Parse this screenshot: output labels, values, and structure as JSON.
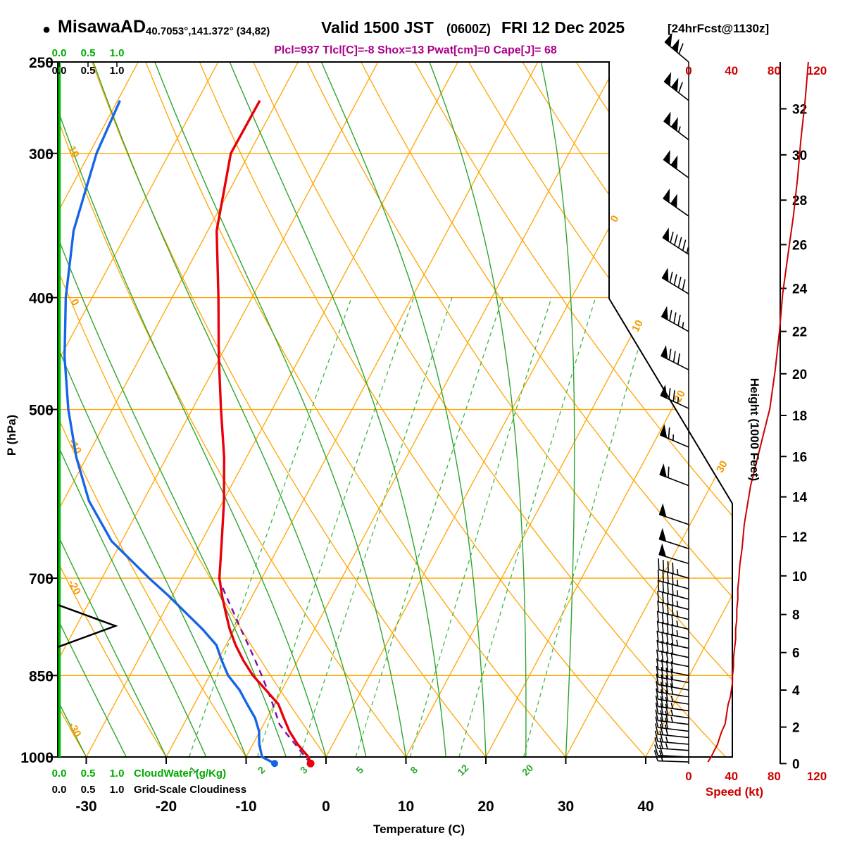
{
  "header": {
    "station_marker": "●",
    "station": "MisawaAD",
    "coords": "40.7053°,141.372° (34,82)",
    "valid_main": "Valid 1500 JST",
    "valid_zulu": "(0600Z)",
    "valid_date": "FRI 12 Dec 2025",
    "fcst_tag": "[24hrFcst@1130z]",
    "indices": "Plcl=937 Tlcl[C]=-8 Shox=13 Pwat[cm]=0 Cape[J]= 68"
  },
  "colors": {
    "grid_orange": "#FFA500",
    "label_orange": "#F59B00",
    "moist_green": "#2FA52F",
    "mixing_green": "#3DB83D",
    "cloudwater_green": "#00BB00",
    "scale_green": "#00AA00",
    "temp_red": "#E8000A",
    "dewpoint_blue": "#1565E6",
    "parcel_purple": "#7A0DA8",
    "speed_red": "#CC0000",
    "indices_magenta": "#AA0088"
  },
  "axes": {
    "pressure": {
      "title": "P (hPa)",
      "ticks": [
        250,
        300,
        400,
        500,
        700,
        850,
        1000
      ]
    },
    "temperature": {
      "title": "Temperature (C)",
      "ticks": [
        -30,
        -20,
        -10,
        0,
        10,
        20,
        30,
        40
      ]
    },
    "height": {
      "title": "Height (1000 Feet)",
      "ticks": [
        0,
        2,
        4,
        6,
        8,
        10,
        12,
        14,
        16,
        18,
        20,
        22,
        24,
        26,
        28,
        30,
        32
      ]
    },
    "speed": {
      "title": "Speed (kt)",
      "ticks": [
        0,
        40,
        80,
        120
      ]
    },
    "cloudwater": {
      "title": "CloudWater (g/Kg)",
      "ticks": [
        "0.0",
        "0.5",
        "1.0"
      ]
    },
    "cloudiness": {
      "title": "Grid-Scale Cloudiness",
      "ticks": [
        "0.0",
        "0.5",
        "1.0"
      ]
    }
  },
  "chart_data": {
    "type": "skewt_log_p_sounding",
    "pressure_top_hpa": 250,
    "pressure_bottom_hpa": 1000,
    "isobar_lines_hpa": [
      300,
      400,
      500,
      700,
      850
    ],
    "isotherm_step_c": 10,
    "dry_adiabat_step_c": 10,
    "dry_adiabat_labels_c": [
      10,
      0,
      -10,
      -20,
      -30
    ],
    "isotherm_labels_right_c": [
      0,
      10,
      20,
      30
    ],
    "moist_adiabats_c": [
      -30,
      -25,
      -20,
      -15,
      -10,
      -5,
      0,
      5,
      10,
      15,
      20,
      25,
      30
    ],
    "mixing_ratio_g_kg": [
      1,
      2,
      3,
      5,
      8,
      12,
      20
    ],
    "cloud_water_constant_g_kg": 0,
    "grid_scale_cloudiness_constant": 0,
    "left_marker_hpa": 770,
    "lcl_pressure_hpa": 937,
    "sounding": {
      "pressure_hpa": [
        1013,
        1000,
        975,
        950,
        925,
        900,
        875,
        850,
        825,
        800,
        775,
        750,
        725,
        700,
        650,
        600,
        550,
        500,
        450,
        400,
        350,
        300,
        270
      ],
      "temperature_c": [
        -1.5,
        -2.2,
        -4.4,
        -6.3,
        -7.9,
        -9.5,
        -12.0,
        -14.6,
        -16.8,
        -18.8,
        -20.6,
        -22.2,
        -23.8,
        -25.3,
        -27.5,
        -29.9,
        -32.8,
        -36.4,
        -40.2,
        -44.2,
        -48.9,
        -52.3,
        -52.2
      ],
      "dewpoint_c": [
        -6.0,
        -8.0,
        -9.2,
        -10.1,
        -11.5,
        -13.4,
        -15.3,
        -17.7,
        -19.5,
        -21.2,
        -24.0,
        -27.2,
        -30.5,
        -34.1,
        -41.3,
        -46.8,
        -51.3,
        -55.5,
        -59.5,
        -63.3,
        -66.8,
        -69.1,
        -69.7
      ]
    },
    "parcel": {
      "pressure_hpa": [
        1013,
        1000,
        975,
        950,
        937,
        925,
        900,
        875,
        850,
        825,
        800,
        775,
        750,
        725,
        700
      ],
      "temperature_c": [
        -1.5,
        -2.6,
        -4.7,
        -6.9,
        -8.0,
        -8.7,
        -10.2,
        -11.8,
        -13.5,
        -15.3,
        -17.2,
        -19.2,
        -21.2,
        -23.3,
        -25.4
      ]
    },
    "wind": {
      "pressure_hpa": [
        1010,
        1000,
        987,
        975,
        962,
        950,
        937,
        925,
        912,
        900,
        887,
        875,
        862,
        850,
        835,
        820,
        805,
        790,
        775,
        760,
        745,
        730,
        715,
        700,
        680,
        660,
        629,
        582,
        539,
        499,
        462,
        428,
        397,
        367,
        340,
        315,
        292,
        270,
        250
      ],
      "speed_kt": [
        18,
        21,
        24,
        27,
        29,
        31,
        34,
        35,
        36,
        37,
        39,
        40,
        41,
        41,
        42,
        42,
        43,
        44,
        44,
        45,
        45,
        46,
        46,
        47,
        48,
        50,
        52,
        58,
        67,
        76,
        81,
        85,
        88,
        93,
        98,
        102,
        105,
        109,
        112
      ],
      "direction_deg": [
        272,
        273,
        274,
        275,
        276,
        277,
        277,
        278,
        278,
        279,
        279,
        280,
        280,
        281,
        281,
        282,
        282,
        283,
        283,
        284,
        284,
        285,
        285,
        286,
        287,
        288,
        289,
        291,
        293,
        295,
        297,
        299,
        301,
        303,
        305,
        306,
        307,
        308,
        310
      ]
    }
  }
}
